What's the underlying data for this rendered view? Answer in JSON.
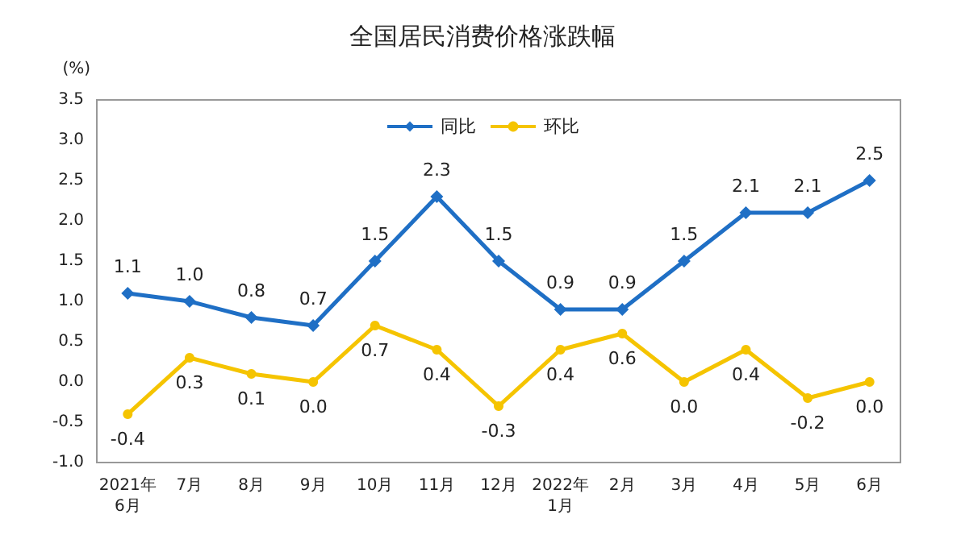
{
  "chart_data": {
    "type": "line",
    "title": "全国居民消费价格涨跌幅",
    "ylabel": "(%)",
    "categories": [
      "2021年\n6月",
      "7月",
      "8月",
      "9月",
      "10月",
      "11月",
      "12月",
      "2022年\n1月",
      "2月",
      "3月",
      "4月",
      "5月",
      "6月"
    ],
    "series": [
      {
        "name": "同比",
        "color": "#1f6fc5",
        "marker": "diamond",
        "values": [
          1.1,
          1.0,
          0.8,
          0.7,
          1.5,
          2.3,
          1.5,
          0.9,
          0.9,
          1.5,
          2.1,
          2.1,
          2.5
        ],
        "value_labels": [
          "1.1",
          "1.0",
          "0.8",
          "0.7",
          "1.5",
          "2.3",
          "1.5",
          "0.9",
          "0.9",
          "1.5",
          "2.1",
          "2.1",
          "2.5"
        ]
      },
      {
        "name": "环比",
        "color": "#f5c400",
        "marker": "circle",
        "values": [
          -0.4,
          0.3,
          0.1,
          0.0,
          0.7,
          0.4,
          -0.3,
          0.4,
          0.6,
          0.0,
          0.4,
          -0.2,
          0.0
        ],
        "value_labels": [
          "-0.4",
          "0.3",
          "0.1",
          "0.0",
          "0.7",
          "0.4",
          "-0.3",
          "0.4",
          "0.6",
          "0.0",
          "0.4",
          "-0.2",
          "0.0"
        ]
      }
    ],
    "ylim": [
      -1.0,
      3.5
    ],
    "yticks": [
      {
        "value": -1.0,
        "label": "-1.0"
      },
      {
        "value": -0.5,
        "label": "-0.5"
      },
      {
        "value": 0,
        "label": "0.0"
      },
      {
        "value": 0.5,
        "label": "0.5"
      },
      {
        "value": 1.0,
        "label": "1.0"
      },
      {
        "value": 1.5,
        "label": "1.5"
      },
      {
        "value": 2.0,
        "label": "2.0"
      },
      {
        "value": 2.5,
        "label": "2.5"
      },
      {
        "value": 3.0,
        "label": "3.0"
      },
      {
        "value": 3.5,
        "label": "3.5"
      }
    ],
    "legend": "top",
    "grid": false
  }
}
